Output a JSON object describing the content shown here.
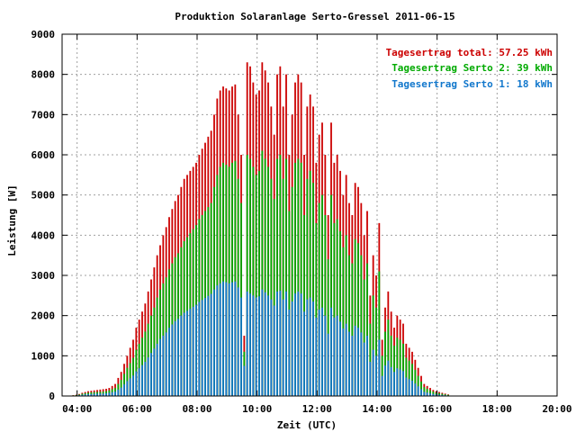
{
  "chart_data": {
    "type": "bar",
    "stacked": true,
    "title": "Produktion Solaranlage Serto-Gressel 2011-06-15",
    "xlabel": "Zeit (UTC)",
    "ylabel": "Leistung [W]",
    "xlim": [
      3.5,
      20.0
    ],
    "ylim": [
      0,
      9000
    ],
    "grid": true,
    "legend_position": "top-right",
    "xticks": [
      {
        "value": 4,
        "label": "04:00"
      },
      {
        "value": 6,
        "label": "06:00"
      },
      {
        "value": 8,
        "label": "08:00"
      },
      {
        "value": 10,
        "label": "10:00"
      },
      {
        "value": 12,
        "label": "12:00"
      },
      {
        "value": 14,
        "label": "14:00"
      },
      {
        "value": 16,
        "label": "16:00"
      },
      {
        "value": 18,
        "label": "18:00"
      },
      {
        "value": 20,
        "label": "20:00"
      }
    ],
    "yticks": [
      {
        "value": 0,
        "label": "0"
      },
      {
        "value": 1000,
        "label": "1000"
      },
      {
        "value": 2000,
        "label": "2000"
      },
      {
        "value": 3000,
        "label": "3000"
      },
      {
        "value": 4000,
        "label": "4000"
      },
      {
        "value": 5000,
        "label": "5000"
      },
      {
        "value": 6000,
        "label": "6000"
      },
      {
        "value": 7000,
        "label": "7000"
      },
      {
        "value": 8000,
        "label": "8000"
      },
      {
        "value": 9000,
        "label": "9000"
      }
    ],
    "legend": [
      {
        "label": "Tagesertrag total: 57.25 kWh",
        "color": "#cc0000"
      },
      {
        "label": "Tagesertrag Serto 2: 39 kWh",
        "color": "#00aa00"
      },
      {
        "label": "Tagesertrag Serto 1: 18 kWh",
        "color": "#1177cc"
      }
    ],
    "series_colors": {
      "total": "#cc0000",
      "serto2": "#00aa00",
      "serto1": "#1177cc"
    },
    "x_start": 3.87,
    "x_step": 0.1,
    "total": [
      20,
      30,
      50,
      80,
      100,
      120,
      130,
      140,
      150,
      160,
      170,
      180,
      200,
      250,
      300,
      450,
      600,
      800,
      1000,
      1200,
      1400,
      1700,
      1900,
      2100,
      2300,
      2600,
      2900,
      3200,
      3500,
      3750,
      4000,
      4200,
      4450,
      4650,
      4850,
      5000,
      5200,
      5400,
      5500,
      5600,
      5700,
      5800,
      6000,
      6150,
      6300,
      6450,
      6600,
      7000,
      7400,
      7600,
      7700,
      7650,
      7600,
      7700,
      7750,
      7000,
      6000,
      1500,
      8300,
      8200,
      7800,
      7500,
      7600,
      8300,
      8100,
      7800,
      7200,
      6500,
      8000,
      8200,
      7200,
      8000,
      6000,
      7000,
      7800,
      8000,
      7800,
      6000,
      7200,
      7500,
      7200,
      5800,
      6500,
      6800,
      6000,
      4500,
      6800,
      5800,
      6000,
      5600,
      5000,
      5500,
      4800,
      4500,
      5300,
      5200,
      4800,
      4000,
      4600,
      2500,
      3500,
      3000,
      4300,
      1400,
      2200,
      2600,
      2100,
      1700,
      2000,
      1900,
      1800,
      1300,
      1200,
      1100,
      900,
      700,
      500,
      300,
      250,
      200,
      150,
      120,
      100,
      80,
      60,
      40
    ],
    "serto2": [
      15,
      20,
      35,
      55,
      70,
      80,
      90,
      95,
      100,
      105,
      110,
      120,
      140,
      170,
      200,
      300,
      400,
      550,
      700,
      820,
      950,
      1150,
      1300,
      1450,
      1600,
      1800,
      2000,
      2200,
      2450,
      2650,
      2800,
      2950,
      3150,
      3300,
      3450,
      3550,
      3700,
      3850,
      3950,
      4050,
      4150,
      4250,
      4400,
      4500,
      4600,
      4700,
      4800,
      5200,
      5500,
      5700,
      5800,
      5750,
      5700,
      5800,
      5850,
      5400,
      4800,
      1100,
      6000,
      5900,
      5700,
      5500,
      5600,
      6100,
      5900,
      5700,
      5400,
      4900,
      5900,
      6000,
      5400,
      5900,
      4600,
      5200,
      5800,
      5900,
      5800,
      4500,
      5400,
      5600,
      5300,
      4300,
      4800,
      5000,
      4500,
      3400,
      5000,
      4300,
      4400,
      4100,
      3700,
      4000,
      3500,
      3300,
      3900,
      3800,
      3500,
      2900,
      3300,
      1800,
      2500,
      2200,
      3100,
      1000,
      1600,
      1900,
      1500,
      1250,
      1450,
      1400,
      1300,
      950,
      880,
      800,
      650,
      500,
      360,
      220,
      180,
      140,
      110,
      85,
      70,
      55,
      40,
      28
    ],
    "serto1": [
      8,
      12,
      20,
      30,
      40,
      45,
      50,
      55,
      58,
      60,
      62,
      68,
      80,
      95,
      110,
      160,
      210,
      290,
      370,
      440,
      510,
      610,
      690,
      770,
      850,
      960,
      1070,
      1180,
      1300,
      1420,
      1500,
      1580,
      1700,
      1780,
      1860,
      1920,
      2000,
      2070,
      2120,
      2170,
      2220,
      2270,
      2340,
      2390,
      2440,
      2490,
      2540,
      2650,
      2750,
      2800,
      2850,
      2830,
      2800,
      2830,
      2850,
      2700,
      2450,
      750,
      2600,
      2550,
      2500,
      2450,
      2480,
      2650,
      2580,
      2500,
      2400,
      2250,
      2600,
      2620,
      2400,
      2600,
      2150,
      2350,
      2550,
      2600,
      2550,
      2100,
      2400,
      2450,
      2350,
      1950,
      2150,
      2200,
      2000,
      1550,
      2200,
      1950,
      2000,
      1850,
      1680,
      1800,
      1600,
      1500,
      1750,
      1700,
      1580,
      1330,
      1500,
      850,
      1150,
      1000,
      1400,
      500,
      760,
      880,
      720,
      600,
      690,
      660,
      620,
      460,
      420,
      380,
      310,
      240,
      170,
      105,
      85,
      66,
      52,
      40,
      33,
      26,
      19,
      13
    ]
  }
}
